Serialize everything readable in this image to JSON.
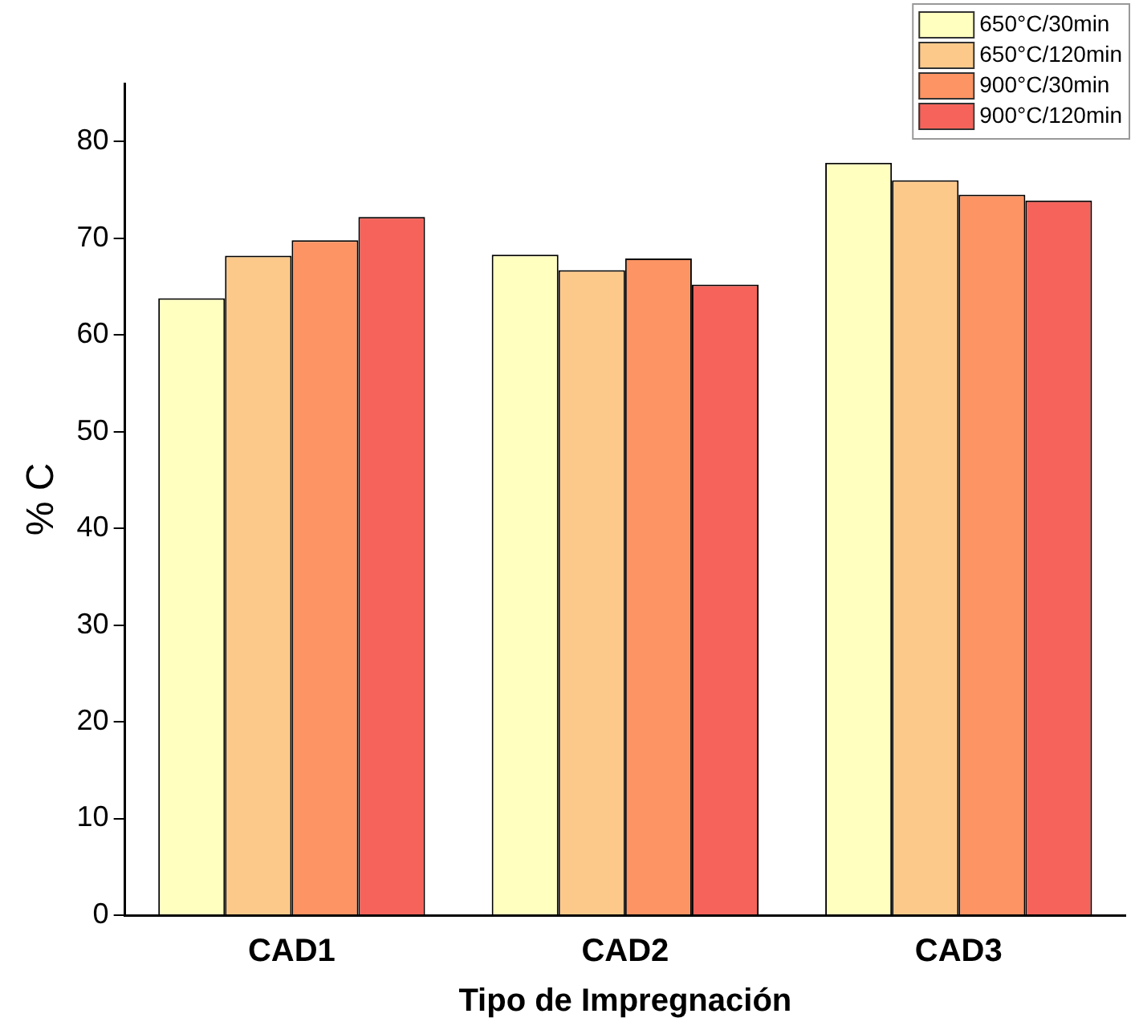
{
  "chart_data": {
    "type": "bar",
    "xlabel": "Tipo de Impregnación",
    "ylabel": "% C",
    "categories": [
      "CAD1",
      "CAD2",
      "CAD3"
    ],
    "series": [
      {
        "name": "650°C/30min",
        "color": "#ffffc0",
        "values": [
          63.8,
          68.3,
          77.8
        ]
      },
      {
        "name": "650°C/120min",
        "color": "#fdc98a",
        "values": [
          68.2,
          66.7,
          76.0
        ]
      },
      {
        "name": "900°C/30min",
        "color": "#fc9463",
        "values": [
          69.8,
          67.9,
          74.5
        ]
      },
      {
        "name": "900°C/120min",
        "color": "#f5635a",
        "values": [
          72.2,
          65.2,
          73.9
        ]
      }
    ],
    "ylim": [
      0,
      86
    ],
    "yticks": [
      0,
      10,
      20,
      30,
      40,
      50,
      60,
      70,
      80
    ],
    "grid": false,
    "legend": "top right"
  }
}
